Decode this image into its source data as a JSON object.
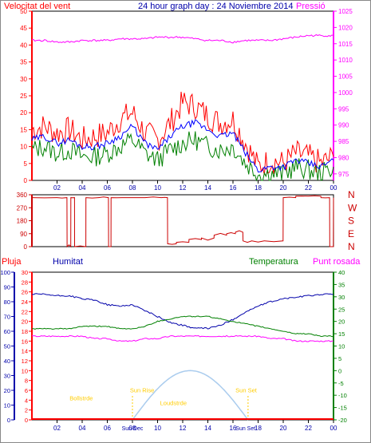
{
  "header": {
    "wind_label": "Velocitat del vent",
    "title": "24 hour graph day : 24 Noviembre 2014",
    "pressure_label": "Pressió"
  },
  "middle": {
    "rain_label": "Pluja",
    "humidity_label": "Humitat",
    "temperature_label": "Temperatura",
    "dewpoint_label": "Punt rosada"
  },
  "colors": {
    "wind_gust": "#ff0000",
    "wind_avg": "#008000",
    "wind_mean": "#0000ff",
    "pressure": "#ff00ff",
    "direction": "#cc0000",
    "humidity": "#0000aa",
    "temperature": "#008000",
    "dewpoint": "#ff00ff",
    "rain": "#ff0000",
    "solar": "#aaccee",
    "sun_text": "#ffcc00"
  },
  "chart_data": [
    {
      "type": "line",
      "name": "wind_pressure",
      "x_ticks": [
        "02",
        "04",
        "06",
        "08",
        "10",
        "12",
        "14",
        "16",
        "18",
        "20",
        "22",
        "00"
      ],
      "left_ticks": [
        "50",
        "45",
        "40",
        "35",
        "30",
        "25",
        "20",
        "15",
        "10",
        "5",
        "0"
      ],
      "right_ticks": [
        "1025",
        "1020",
        "1015",
        "1010",
        "1005",
        "1000",
        "995",
        "990",
        "985",
        "980",
        "975"
      ],
      "ylim_left": [
        0,
        50
      ],
      "ylim_right": [
        973,
        1025
      ],
      "hours": [
        0,
        1,
        2,
        3,
        4,
        5,
        6,
        7,
        8,
        9,
        10,
        11,
        12,
        13,
        14,
        15,
        16,
        17,
        18,
        19,
        20,
        21,
        22,
        23,
        24
      ],
      "gust": [
        15,
        16,
        14,
        15,
        12,
        13,
        14,
        18,
        20,
        14,
        12,
        17,
        23,
        22,
        19,
        17,
        18,
        11,
        4,
        6,
        5,
        8,
        7,
        5,
        7
      ],
      "mean": [
        12,
        13,
        11,
        12,
        10,
        10,
        11,
        13,
        16,
        11,
        9,
        13,
        16,
        17,
        15,
        13,
        14,
        8,
        3,
        4,
        4,
        6,
        5,
        4,
        6
      ],
      "avg": [
        9,
        10,
        8,
        9,
        7,
        7,
        8,
        10,
        12,
        8,
        6,
        9,
        11,
        12,
        10,
        9,
        10,
        5,
        2,
        2,
        2,
        4,
        3,
        2,
        4
      ],
      "pressure": [
        1016,
        1016,
        1015.5,
        1015.5,
        1016,
        1016,
        1016,
        1016.5,
        1016.5,
        1016.5,
        1017,
        1017,
        1017,
        1016.5,
        1016,
        1016,
        1015.5,
        1016,
        1016,
        1016,
        1016.5,
        1017,
        1017.5,
        1017.5,
        1017.5
      ]
    },
    {
      "type": "line",
      "name": "wind_direction",
      "right_labels": [
        "N",
        "W",
        "S",
        "E",
        "N"
      ],
      "left_ticks": [
        "360",
        "270",
        "180",
        "90",
        "0"
      ],
      "ylim": [
        0,
        360
      ],
      "hours": [
        0,
        2,
        2.8,
        3.1,
        3.4,
        4.3,
        5.3,
        6.1,
        6.3,
        7.2,
        9,
        10.3,
        10.8,
        11.5,
        12.5,
        13.5,
        14.5,
        15.5,
        16.2,
        16.8,
        17.5,
        18.5,
        20,
        21,
        22,
        23,
        23.7,
        24
      ],
      "direction": [
        340,
        340,
        0,
        340,
        0,
        340,
        340,
        0,
        340,
        340,
        340,
        340,
        20,
        30,
        50,
        60,
        80,
        90,
        100,
        40,
        40,
        40,
        340,
        350,
        350,
        340,
        0,
        340
      ]
    },
    {
      "type": "line",
      "name": "humidity_temperature",
      "x_ticks": [
        "02",
        "04",
        "06",
        "08",
        "10",
        "12",
        "14",
        "16",
        "18",
        "20",
        "22",
        "00"
      ],
      "humidity_ticks": [
        "100",
        "90",
        "80",
        "70",
        "60",
        "50",
        "40",
        "30",
        "20",
        "10",
        "0"
      ],
      "rain_ticks": [
        "30",
        "28",
        "26",
        "24",
        "22",
        "20",
        "18",
        "16",
        "14",
        "12",
        "10",
        "8",
        "6",
        "4",
        "2",
        "0"
      ],
      "temperature_ticks": [
        "40",
        "35",
        "30",
        "25",
        "20",
        "15",
        "10",
        "5",
        "0",
        "-5",
        "-10",
        "-15",
        "-20"
      ],
      "hours": [
        0,
        1,
        2,
        3,
        4,
        5,
        6,
        7,
        8,
        9,
        10,
        11,
        12,
        13,
        14,
        15,
        16,
        17,
        18,
        19,
        20,
        21,
        22,
        23,
        24
      ],
      "humidity": [
        85,
        85,
        84,
        84,
        82,
        81,
        78,
        77,
        78,
        74,
        70,
        66,
        64,
        62,
        62,
        64,
        68,
        73,
        77,
        80,
        82,
        83,
        84,
        85,
        85
      ],
      "temperature": [
        17,
        17,
        17,
        17,
        18,
        18,
        18,
        17,
        17,
        18,
        20,
        21,
        22,
        22,
        22,
        21,
        20,
        19,
        18,
        17,
        16,
        15,
        15,
        14,
        14
      ],
      "dewpoint": [
        14,
        14,
        14,
        14,
        14,
        13,
        13,
        12,
        12,
        13,
        13,
        14,
        14,
        14,
        14,
        14,
        14,
        14,
        14,
        13,
        13,
        12,
        12,
        12,
        12
      ],
      "rain": [
        0,
        0,
        0,
        0,
        0,
        0,
        0,
        0,
        0,
        0,
        0,
        0,
        0,
        0,
        0,
        0,
        0,
        0,
        0,
        0,
        0,
        0,
        0,
        0,
        0
      ],
      "solar": [
        0,
        0,
        0,
        0,
        0,
        0,
        0,
        0,
        0,
        2.5,
        5,
        7.5,
        9.2,
        10,
        9.5,
        8,
        5,
        2,
        0,
        0,
        0,
        0,
        0,
        0,
        0
      ],
      "solar_ylim": [
        0,
        30
      ],
      "annotations": {
        "sunrise": "Sun Rise",
        "sunset": "Sun Set",
        "daylight": "Sun Dec",
        "night1": "Sun Dec",
        "bollstrde": "Bollstrde",
        "loudstrde": "Loudstrde",
        "sun_end": "Sun Set"
      }
    }
  ]
}
